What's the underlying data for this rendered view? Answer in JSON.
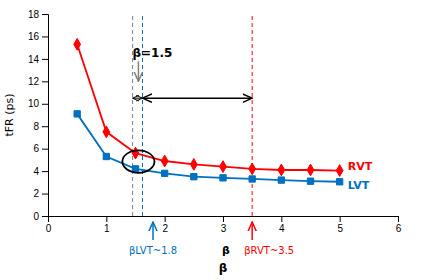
{
  "chart_data": {
    "type": "line",
    "x": [
      0.5,
      1.0,
      1.5,
      2.0,
      2.5,
      3.0,
      3.5,
      4.0,
      4.5,
      5.0
    ],
    "series": [
      {
        "name": "RVT",
        "color": "#FF0000",
        "marker": "diamond",
        "values": [
          15.3,
          7.5,
          5.6,
          4.9,
          4.6,
          4.4,
          4.2,
          4.1,
          4.1,
          4.05
        ]
      },
      {
        "name": "LVT",
        "color": "#0070C0",
        "marker": "square",
        "values": [
          9.1,
          5.3,
          4.2,
          3.8,
          3.5,
          3.4,
          3.3,
          3.2,
          3.1,
          3.05
        ]
      }
    ],
    "x_label": "β",
    "y_label": "tFR (ps)",
    "xlim": [
      0,
      6
    ],
    "ylim": [
      0,
      18
    ],
    "xticks": [
      0,
      1,
      2,
      3,
      4,
      5,
      6
    ],
    "yticks": [
      0,
      2,
      4,
      6,
      8,
      10,
      12,
      14,
      16,
      18
    ],
    "vlines": [
      {
        "value": 1.45,
        "color": "gray"
      },
      {
        "value": 1.62,
        "color": "#0070C0"
      },
      {
        "value": 3.5,
        "color": "#FF0000"
      }
    ],
    "spans": [
      {
        "from": 1.62,
        "to": 3.5,
        "y": 10.5
      },
      {
        "from": 1.45,
        "to": 1.62,
        "y": 10.5
      }
    ],
    "ellipse": {
      "x": 1.55,
      "y": 4.85,
      "width": 0.55,
      "height": 2.0
    },
    "annotations": [
      {
        "text": "β=1.5",
        "x": 1.55,
        "y": 12.0
      },
      {
        "text": "β",
        "x": 3.05
      }
    ],
    "beta_markers": [
      {
        "text": "βLVT~1.8",
        "value": 1.8,
        "color": "#0070C0"
      },
      {
        "text": "βRVT~3.5",
        "value": 3.5,
        "color": "#FF0000"
      }
    ]
  }
}
